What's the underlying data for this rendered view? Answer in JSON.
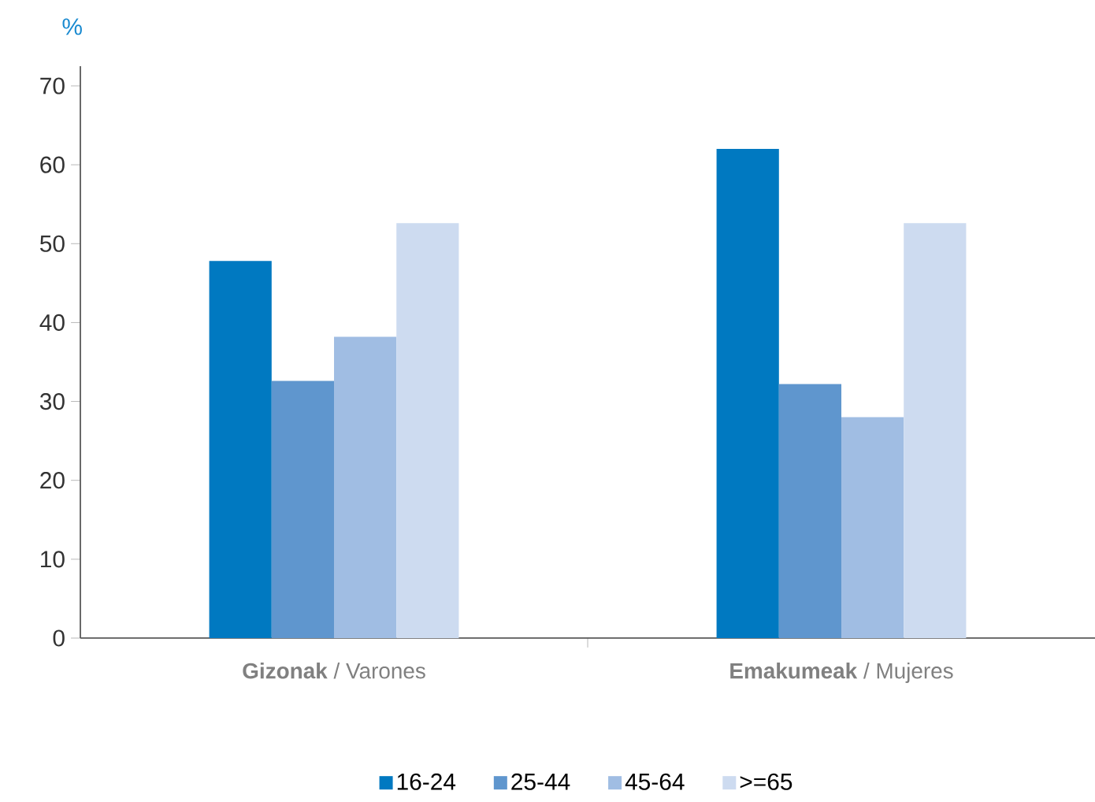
{
  "chart_data": {
    "type": "bar",
    "ylabel": "%",
    "categories": [
      "**Gizonak** / Varones",
      "**Emakumeak** / Mujeres"
    ],
    "series": [
      {
        "name": "16-24",
        "color": "#0079c1",
        "values": [
          47.8,
          62.0
        ]
      },
      {
        "name": "25-44",
        "color": "#5f96ce",
        "values": [
          32.6,
          32.2
        ]
      },
      {
        "name": "45-64",
        "color": "#a0bde3",
        "values": [
          38.2,
          28.0
        ]
      },
      {
        "name": ">=65",
        "color": "#cddbf0",
        "values": [
          52.6,
          52.6
        ]
      }
    ],
    "ylim": [
      0,
      72.5
    ],
    "yticks": [
      0,
      10,
      20,
      30,
      40,
      50,
      60,
      70
    ],
    "grid": false,
    "legend": "bottom"
  }
}
